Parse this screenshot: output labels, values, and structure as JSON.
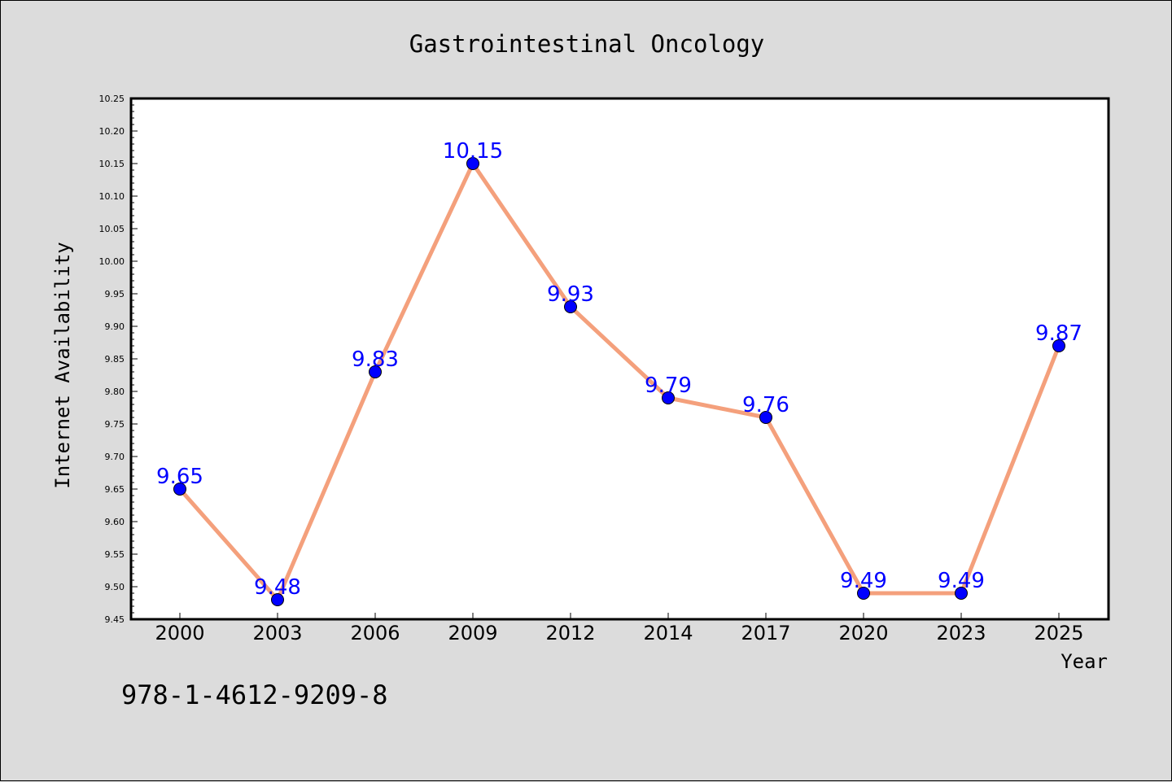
{
  "chart_data": {
    "type": "line",
    "title": "Gastrointestinal Oncology",
    "xlabel": "Year",
    "ylabel": "Internet Availability",
    "categories": [
      "2000",
      "2003",
      "2006",
      "2009",
      "2012",
      "2014",
      "2017",
      "2020",
      "2023",
      "2025"
    ],
    "values": [
      9.65,
      9.48,
      9.83,
      10.15,
      9.93,
      9.79,
      9.76,
      9.49,
      9.49,
      9.87
    ],
    "data_labels": [
      "9.65",
      "9.48",
      "9.83",
      "10.15",
      "9.93",
      "9.79",
      "9.76",
      "9.49",
      "9.49",
      "9.87"
    ],
    "ylim": [
      9.45,
      10.25
    ],
    "yticks": [
      "9.45",
      "9.50",
      "9.55",
      "9.60",
      "9.65",
      "9.70",
      "9.75",
      "9.80",
      "9.85",
      "9.90",
      "9.95",
      "10.00",
      "10.05",
      "10.10",
      "10.15",
      "10.20",
      "10.25"
    ],
    "grid": false,
    "line_color": "#f4a07c",
    "marker_color": "#0000ff",
    "label_color": "#0000ff"
  },
  "footer": {
    "isbn": "978-1-4612-9209-8"
  }
}
